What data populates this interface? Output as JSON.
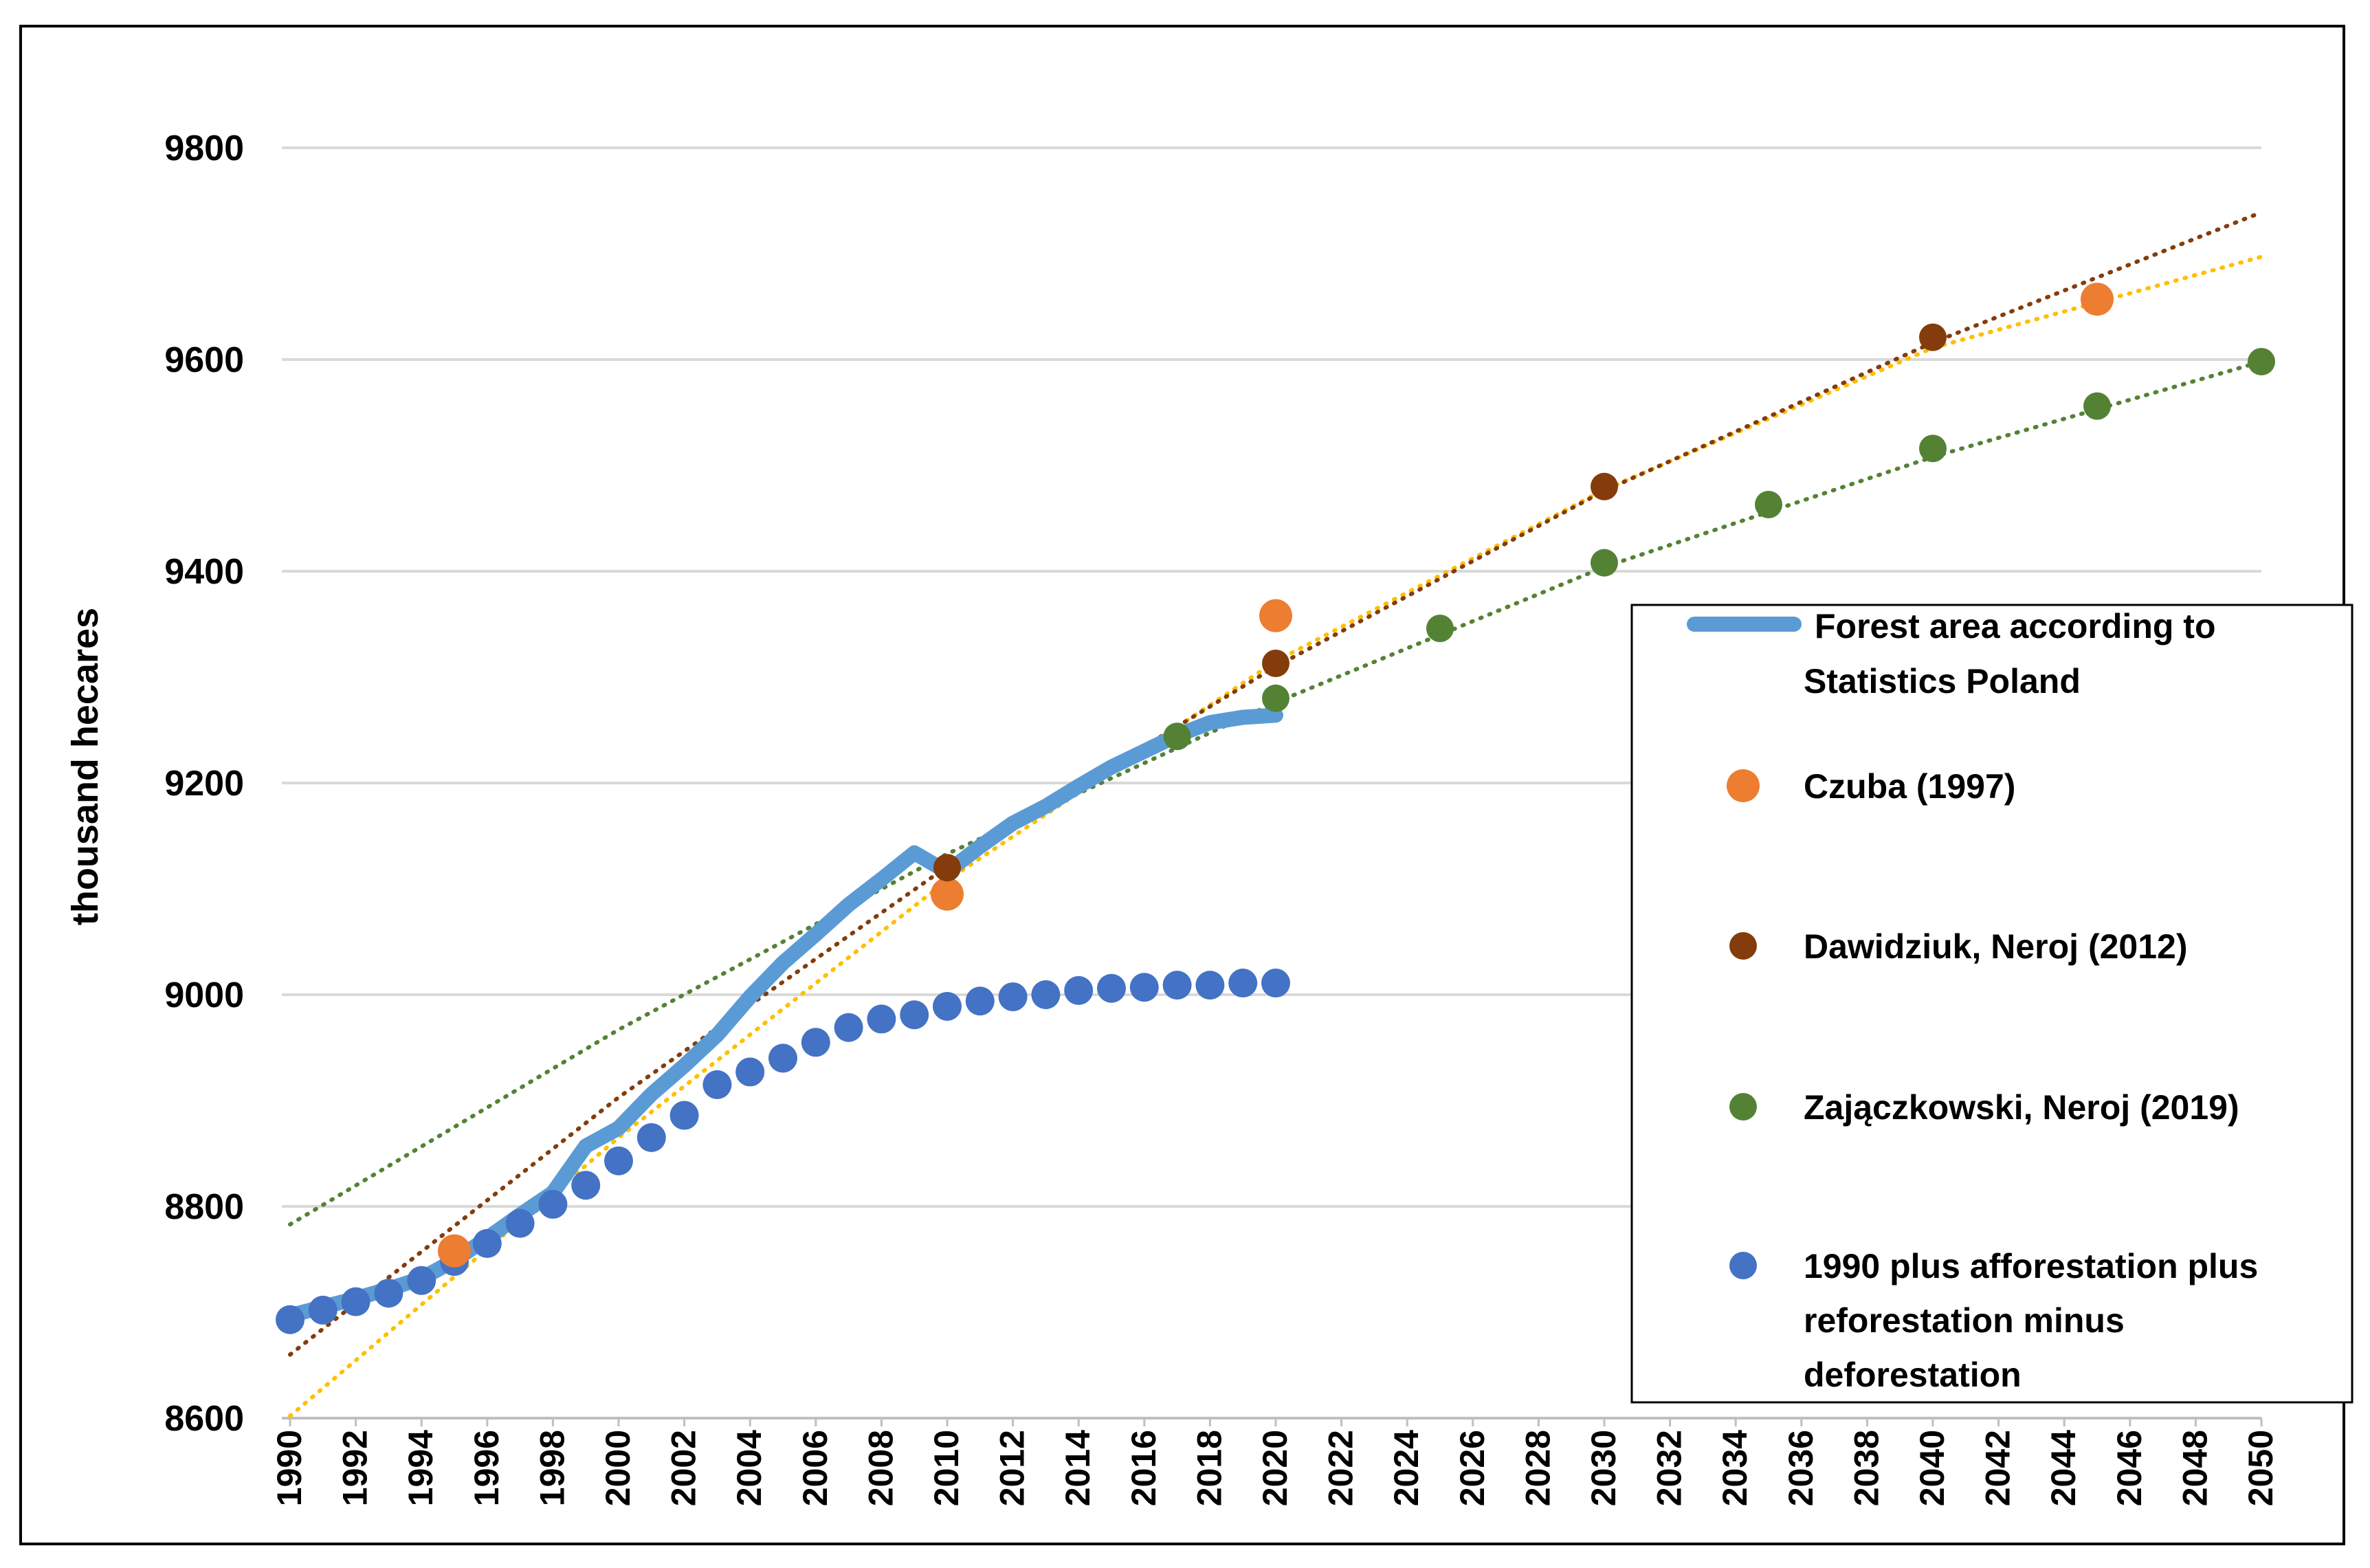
{
  "chart_data": {
    "type": "line",
    "title": "",
    "xlabel": "",
    "ylabel": "thousand hecares",
    "xlim": [
      1990,
      2050
    ],
    "ylim": [
      8600,
      9800
    ],
    "y_ticks": [
      8600,
      8800,
      9000,
      9200,
      9400,
      9600,
      9800
    ],
    "x_ticks": [
      1990,
      1992,
      1994,
      1996,
      1998,
      2000,
      2002,
      2004,
      2006,
      2008,
      2010,
      2012,
      2014,
      2016,
      2018,
      2020,
      2022,
      2024,
      2026,
      2028,
      2030,
      2032,
      2034,
      2036,
      2038,
      2040,
      2042,
      2044,
      2046,
      2048,
      2050
    ],
    "grid": "horizontal",
    "legend_position": "right",
    "series": [
      {
        "name": "Forest area according to Statistics Poland",
        "kind": "line",
        "color": "#5B9BD5",
        "x": [
          1990,
          1991,
          1992,
          1993,
          1994,
          1995,
          1996,
          1997,
          1998,
          1999,
          2000,
          2001,
          2002,
          2003,
          2004,
          2005,
          2006,
          2007,
          2008,
          2009,
          2010,
          2011,
          2012,
          2013,
          2014,
          2015,
          2016,
          2017,
          2018,
          2019,
          2020
        ],
        "y": [
          8697,
          8705,
          8713,
          8722,
          8732,
          8749,
          8770,
          8792,
          8813,
          8857,
          8874,
          8906,
          8933,
          8962,
          8998,
          9030,
          9057,
          9085,
          9109,
          9134,
          9116,
          9140,
          9162,
          9178,
          9197,
          9215,
          9230,
          9245,
          9257,
          9262,
          9264
        ]
      },
      {
        "name": "Czuba (1997)",
        "kind": "scatter",
        "color": "#ED7D31",
        "trend_color": "#FFC000",
        "x": [
          1995,
          2010,
          2020,
          2045
        ],
        "y": [
          8758,
          9095,
          9358,
          9657
        ],
        "trend": {
          "x": [
            1990,
            2000,
            2010,
            2020,
            2030,
            2040,
            2050
          ],
          "y": [
            8602,
            8865,
            9108,
            9315,
            9477,
            9611,
            9697
          ]
        }
      },
      {
        "name": "Dawidziuk, Neroj (2012)",
        "kind": "scatter",
        "color": "#843C0C",
        "trend_color": "#843C0C",
        "x": [
          2010,
          2020,
          2030,
          2040
        ],
        "y": [
          9120,
          9313,
          9480,
          9621
        ],
        "trend": {
          "x": [
            1990,
            2000,
            2010,
            2020,
            2030,
            2040,
            2050
          ],
          "y": [
            8660,
            8903,
            9121,
            9310,
            9476,
            9616,
            9739
          ]
        }
      },
      {
        "name": "Zajączkowski, Neroj (2019)",
        "kind": "scatter",
        "color": "#548235",
        "trend_color": "#548235",
        "x": [
          2017,
          2020,
          2025,
          2030,
          2035,
          2040,
          2045,
          2050
        ],
        "y": [
          9244,
          9280,
          9346,
          9408,
          9463,
          9516,
          9556,
          9598
        ],
        "trend": {
          "x": [
            1990,
            2000,
            2010,
            2020,
            2030,
            2040,
            2050
          ],
          "y": [
            8783,
            8967,
            9133,
            9276,
            9404,
            9508,
            9598
          ]
        }
      },
      {
        "name": "1990 plus afforestation plus reforestation minus deforestation",
        "kind": "scatter",
        "color": "#4472C4",
        "x": [
          1990,
          1991,
          1992,
          1993,
          1994,
          1995,
          1996,
          1997,
          1998,
          1999,
          2000,
          2001,
          2002,
          2003,
          2004,
          2005,
          2006,
          2007,
          2008,
          2009,
          2010,
          2011,
          2012,
          2013,
          2014,
          2015,
          2016,
          2017,
          2018,
          2019,
          2020
        ],
        "y": [
          8693,
          8702,
          8710,
          8718,
          8730,
          8748,
          8765,
          8784,
          8802,
          8820,
          8843,
          8865,
          8886,
          8915,
          8927,
          8940,
          8955,
          8969,
          8977,
          8981,
          8989,
          8994,
          8998,
          9000,
          9004,
          9006,
          9007,
          9009,
          9009,
          9011,
          9011
        ]
      }
    ],
    "legend": {
      "line1": [
        "Forest area according to",
        "Statistics Poland"
      ],
      "czuba": "Czuba (1997)",
      "dawidziuk": "Dawidziuk, Neroj (2012)",
      "zajaczkowski": "Zajączkowski, Neroj (2019)",
      "blue": [
        "1990 plus afforestation plus",
        "reforestation minus",
        "deforestation"
      ]
    }
  }
}
